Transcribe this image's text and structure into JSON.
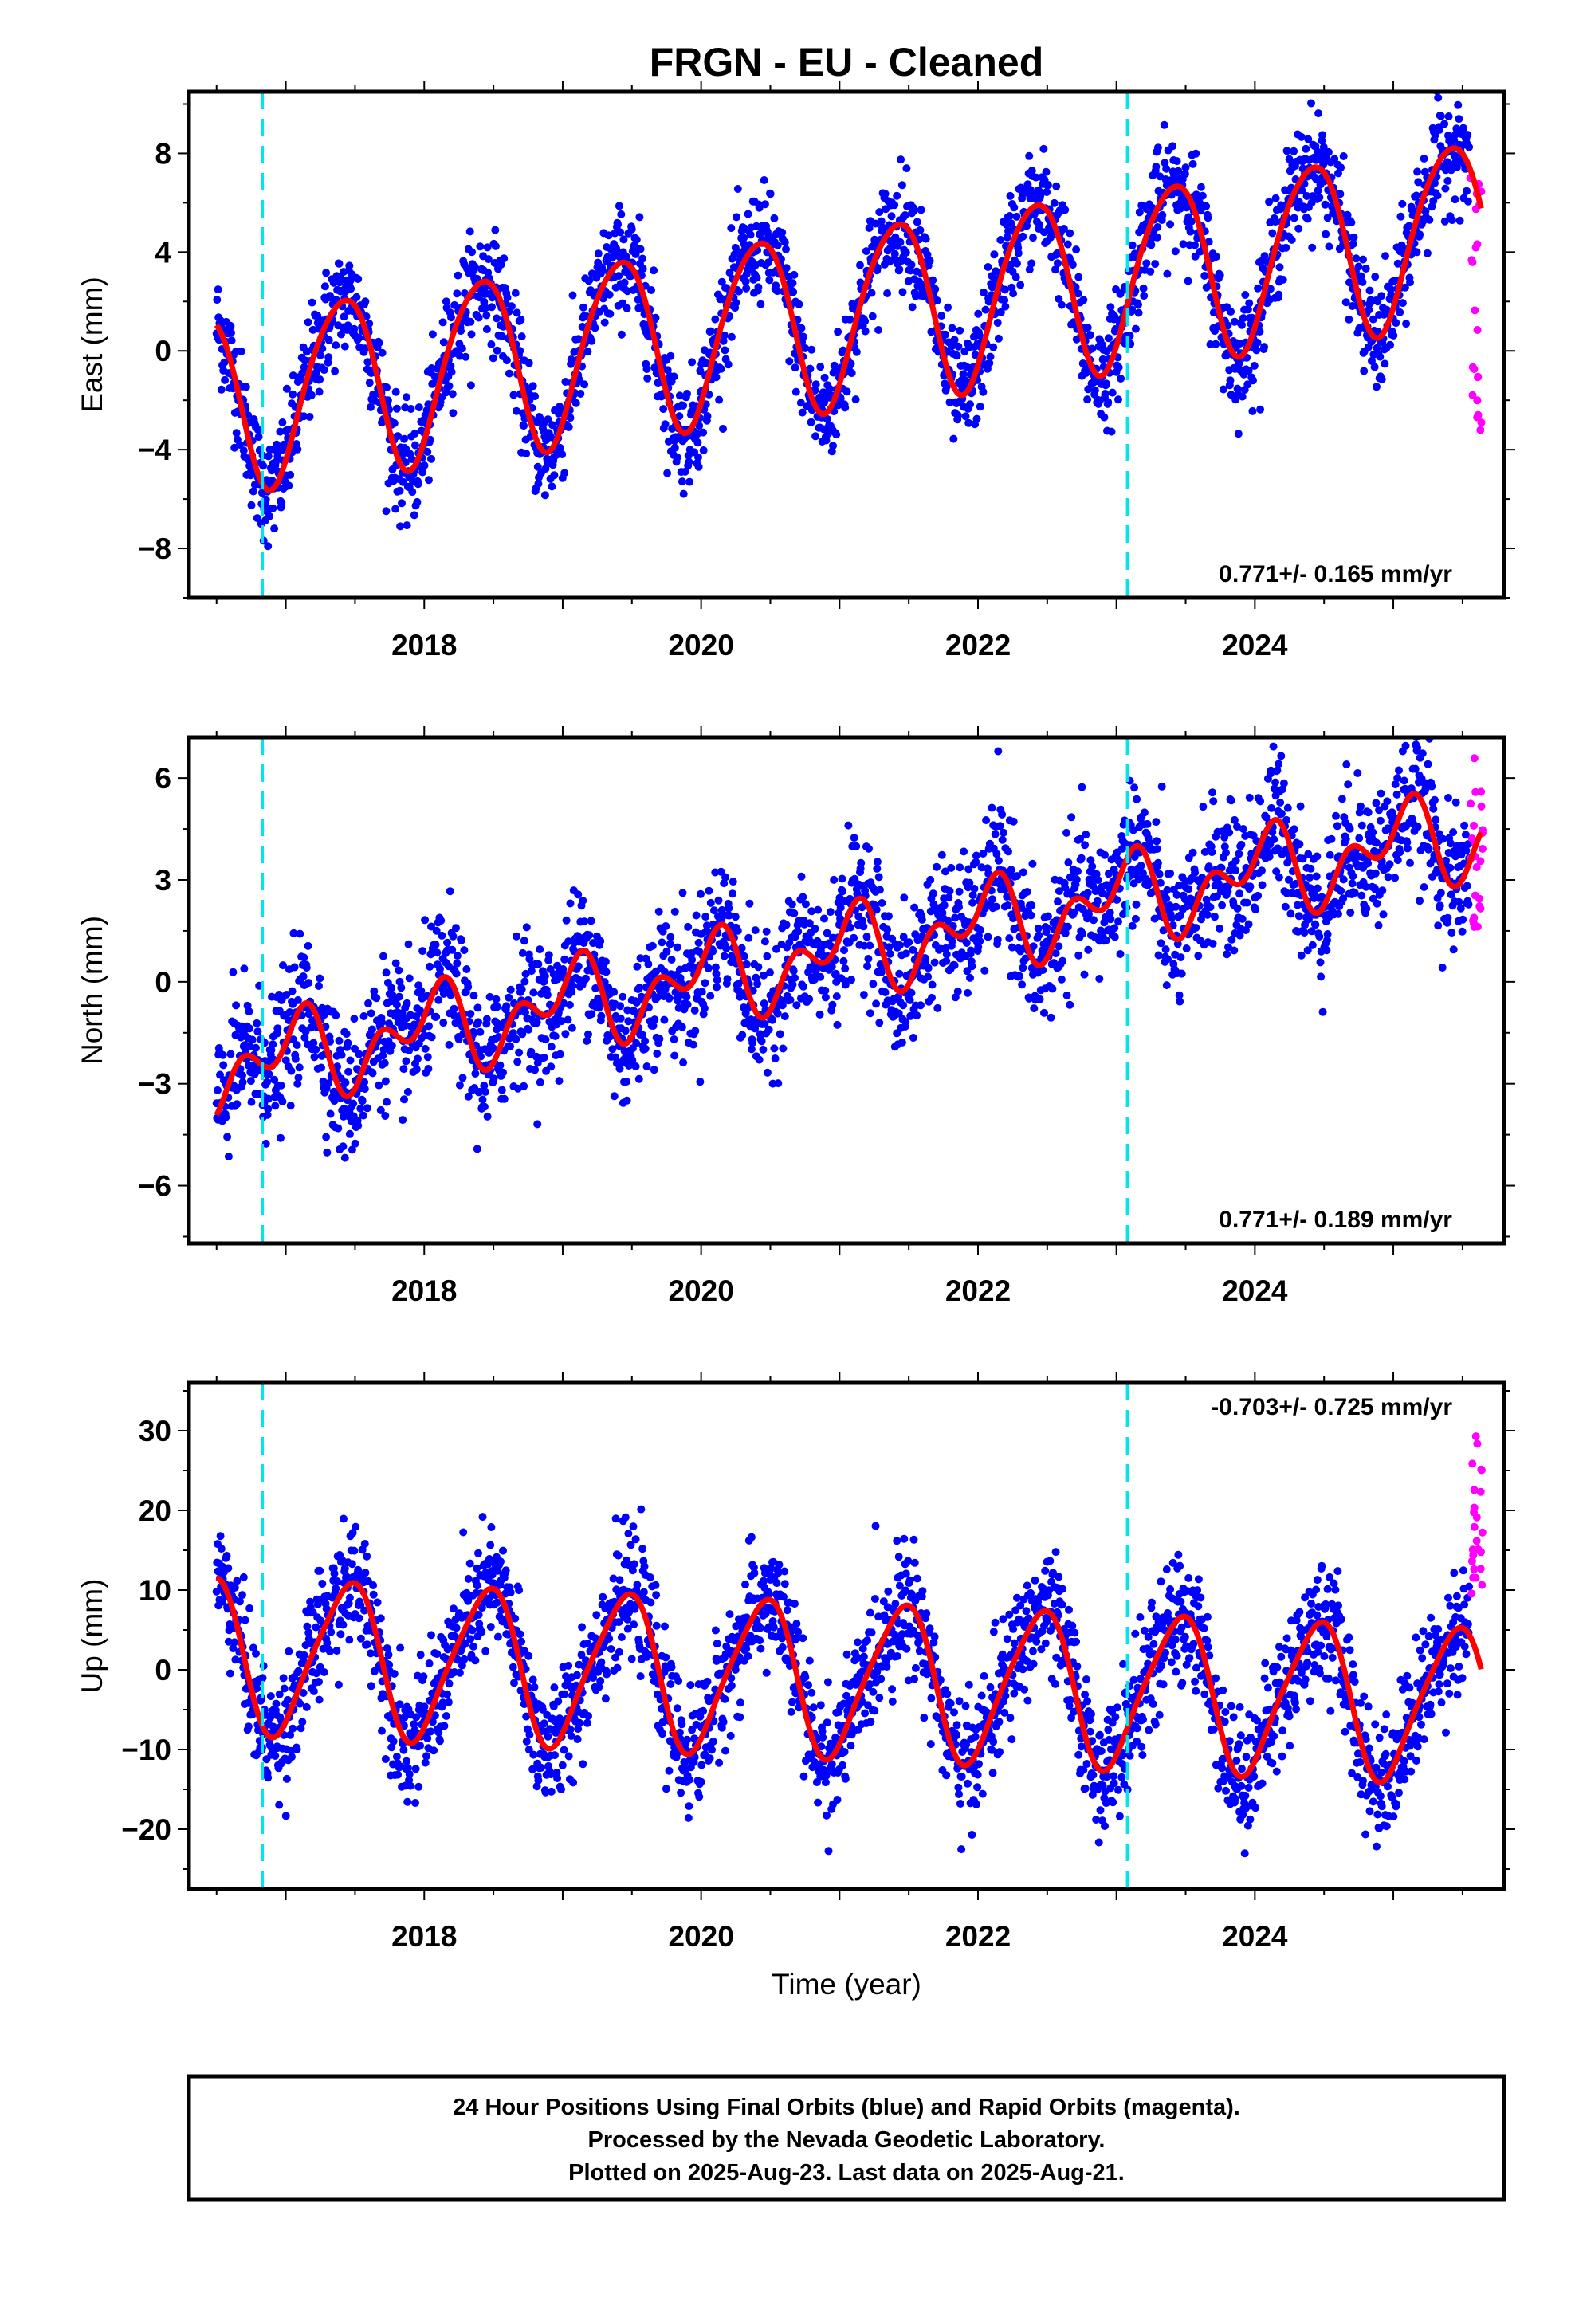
{
  "chart_data": {
    "title": "FRGN  - EU - Cleaned",
    "type": "scatter",
    "x_range": [
      2016.3,
      2025.8
    ],
    "xticks": [
      "2018",
      "2020",
      "2022",
      "2024"
    ],
    "xlabel": "Time (year)",
    "equipment_changes": [
      2016.83,
      2023.08
    ],
    "colors": {
      "final": "#0000ff",
      "rapid": "#ff00ff",
      "model": "#ff0000",
      "event": "#00e5ee"
    },
    "series_description": [
      "Final Orbits (blue)",
      "Rapid Orbits (magenta)",
      "Model fit (red)"
    ],
    "panels": [
      {
        "component": "East",
        "ylabel": "East (mm)",
        "ylim": [
          -10,
          10.5
        ],
        "yticks": [
          -8,
          -4,
          0,
          4,
          8
        ],
        "rate_text": "0.771+/- 0.165 mm/yr",
        "rate_position": "bottom-right",
        "model": {
          "offset": -2.0,
          "trend": 0.771,
          "annual_amp": 3.6,
          "annual_phase": -0.95,
          "semi_amp": 0.4,
          "semi_phase": 0.3,
          "t0": 2016.5
        },
        "scatter_sd": 1.1,
        "rapid_range": [
          -3.5,
          7.6
        ]
      },
      {
        "component": "North",
        "ylabel": "North (mm)",
        "ylim": [
          -7.7,
          7.2
        ],
        "yticks": [
          -6,
          -3,
          0,
          3,
          6
        ],
        "rate_text": "0.771+/- 0.189 mm/yr",
        "rate_position": "bottom-right",
        "model": {
          "offset": -2.6,
          "trend": 0.771,
          "annual_amp": 0.9,
          "annual_phase": 1.3,
          "semi_amp": 0.8,
          "semi_phase": -0.6,
          "t0": 2016.5
        },
        "scatter_sd": 1.0,
        "rapid_range": [
          1.6,
          6.9
        ]
      },
      {
        "component": "Up",
        "ylabel": "Up (mm)",
        "ylim": [
          -27.5,
          36
        ],
        "yticks": [
          -20,
          -10,
          0,
          10,
          20,
          30
        ],
        "rate_text": "-0.703+/- 0.725 mm/yr",
        "rate_position": "top-right",
        "model": {
          "offset": 2.0,
          "trend": -0.703,
          "annual_amp": 9.5,
          "annual_phase": -1.2,
          "semi_amp": 1.5,
          "semi_phase": 0.5,
          "t0": 2016.5
        },
        "scatter_sd": 3.8,
        "rapid_range": [
          9.5,
          30
        ]
      }
    ]
  },
  "footer": {
    "line1": "24 Hour Positions Using Final Orbits (blue) and Rapid Orbits (magenta).",
    "line2": "Processed by the Nevada Geodetic Laboratory.",
    "line3": "Plotted on 2025-Aug-23. Last data on 2025-Aug-21."
  }
}
